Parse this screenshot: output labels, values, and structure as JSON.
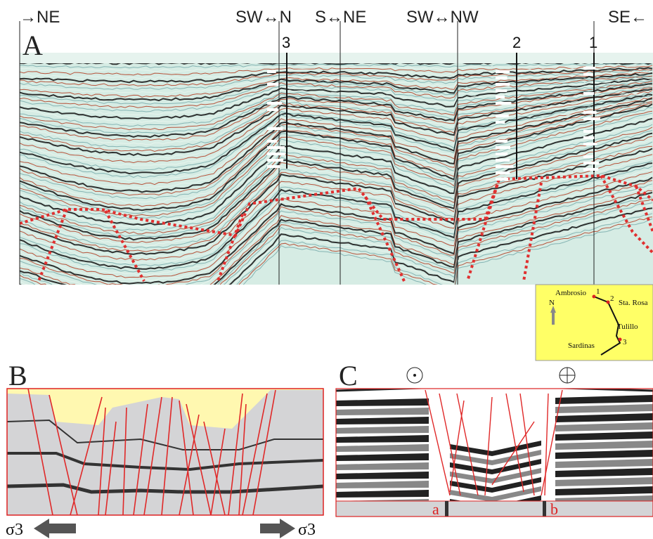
{
  "panel_a": {
    "label": "A",
    "directions": [
      "→NE",
      "SW↔N",
      "S↔NE",
      "SW↔NW",
      "SE←"
    ],
    "wells": [
      "3",
      "2",
      "1"
    ],
    "inset": {
      "north": "N",
      "places": [
        "Ambrosio",
        "Sta. Rosa",
        "Tulillo",
        "Sardinas"
      ],
      "well_numbers": [
        "1",
        "2",
        "3"
      ]
    }
  },
  "panel_b": {
    "label": "B",
    "stress_left": "σ3",
    "stress_right": "σ3"
  },
  "panel_c": {
    "label": "C",
    "ends": [
      "a",
      "b"
    ]
  }
}
